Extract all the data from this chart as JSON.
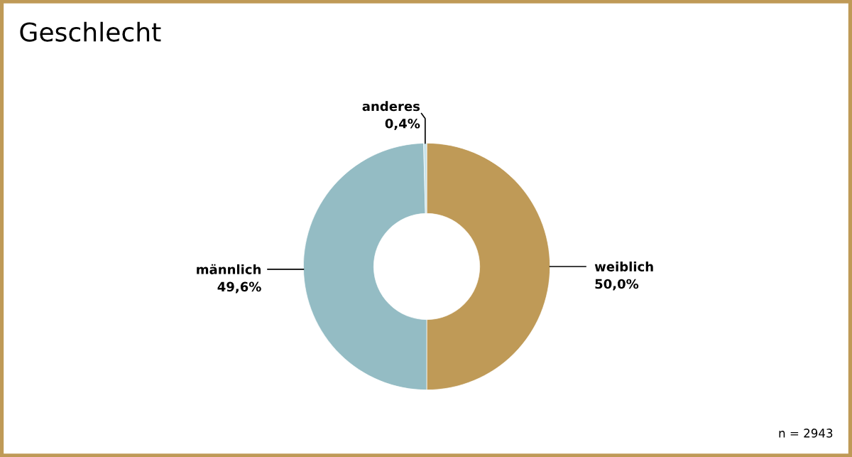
{
  "chart_data": {
    "type": "donut",
    "title": "Geschlecht",
    "categories": [
      "weiblich",
      "männlich",
      "anderes"
    ],
    "values": [
      50.0,
      49.6,
      0.4
    ],
    "value_labels": [
      "50,0%",
      "49,6%",
      "0,4%"
    ],
    "colors": [
      "#bf9a57",
      "#94bcc4",
      "#c6e2ea"
    ],
    "annotations": [
      "n = 2943"
    ]
  }
}
